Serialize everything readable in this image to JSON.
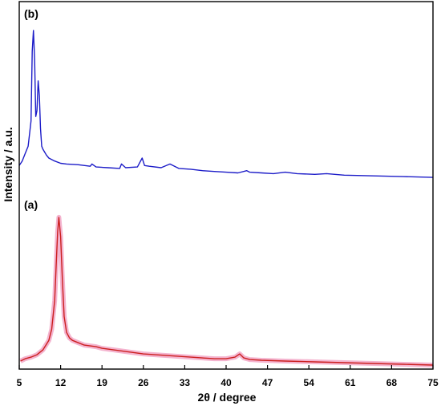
{
  "chart_data": {
    "type": "line",
    "xlabel": "2θ / degree",
    "ylabel": "Intensity / a.u.",
    "xlim": [
      5,
      75
    ],
    "x_ticks": [
      5,
      12,
      19,
      26,
      33,
      40,
      47,
      54,
      61,
      68,
      75
    ],
    "y_ticks_shown": false,
    "grid": false,
    "legend": "none",
    "series": [
      {
        "label": "(a)",
        "color": "#cc1f1f",
        "halo_color": "#f4b4cf",
        "x": [
          5.2,
          6,
          7,
          8,
          9,
          10,
          10.5,
          11,
          11.3,
          11.5,
          11.7,
          12.0,
          12.3,
          12.6,
          13,
          13.5,
          14,
          15,
          16,
          17,
          18,
          19,
          20,
          22,
          24,
          26,
          28,
          30,
          32,
          34,
          36,
          38,
          40,
          41.5,
          42.3,
          43,
          44,
          46,
          50,
          55,
          60,
          65,
          70,
          75
        ],
        "y": [
          4,
          5.5,
          6.5,
          8,
          11,
          17,
          24,
          42,
          68,
          85,
          94,
          82,
          55,
          32,
          22,
          18.5,
          17,
          15.5,
          14,
          13.5,
          13,
          12,
          11.5,
          10.5,
          9.5,
          8.5,
          8,
          7.5,
          7,
          6.5,
          6,
          5.5,
          5.5,
          6.5,
          8.5,
          6,
          5,
          4.5,
          4,
          3.5,
          3,
          2.5,
          2,
          1.5
        ]
      },
      {
        "label": "(b)",
        "color": "#1c1cc8",
        "x": [
          5.0,
          5.5,
          6,
          6.5,
          7.0,
          7.2,
          7.4,
          7.6,
          7.8,
          8.0,
          8.2,
          8.4,
          8.6,
          8.8,
          9.0,
          9.3,
          9.6,
          10,
          11,
          12,
          13,
          15,
          17,
          17.3,
          18,
          20,
          22,
          22.3,
          23,
          25,
          25.8,
          26.2,
          27,
          29,
          30.5,
          31,
          32,
          34,
          36,
          38,
          40,
          42,
          43.5,
          44,
          46,
          48,
          50,
          52,
          55,
          57,
          60,
          65,
          70,
          75
        ],
        "y": [
          15,
          18,
          23,
          28,
          45,
          92,
          106,
          86,
          48,
          52,
          72,
          62,
          40,
          28,
          26,
          24,
          22,
          20,
          18,
          16.5,
          16,
          15.5,
          14.5,
          16,
          14,
          13.5,
          13,
          16,
          13.5,
          14,
          20,
          15,
          14.5,
          13.5,
          16,
          15,
          13,
          12.5,
          11.5,
          11,
          10.5,
          10,
          11.5,
          10.5,
          10,
          9.5,
          10.5,
          9.5,
          9,
          9.5,
          8.5,
          8,
          7.5,
          7
        ]
      }
    ]
  }
}
